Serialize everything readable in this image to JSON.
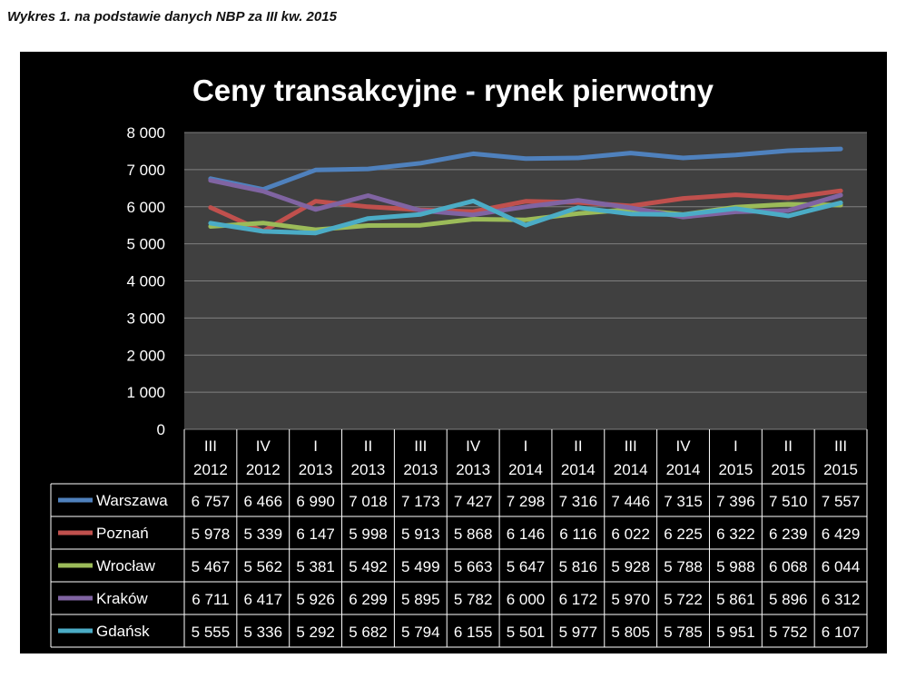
{
  "caption": "Wykres 1. na podstawie danych NBP za III kw. 2015",
  "chart_data": {
    "type": "line",
    "title": "Ceny transakcyjne - rynek pierwotny",
    "ylim": [
      0,
      8000
    ],
    "yticks": [
      "0",
      "1 000",
      "2 000",
      "3 000",
      "4 000",
      "5 000",
      "6 000",
      "7 000",
      "8 000"
    ],
    "categories": [
      [
        "III",
        "2012"
      ],
      [
        "IV",
        "2012"
      ],
      [
        "I",
        "2013"
      ],
      [
        "II",
        "2013"
      ],
      [
        "III",
        "2013"
      ],
      [
        "IV",
        "2013"
      ],
      [
        "I",
        "2014"
      ],
      [
        "II",
        "2014"
      ],
      [
        "III",
        "2014"
      ],
      [
        "IV",
        "2014"
      ],
      [
        "I",
        "2015"
      ],
      [
        "II",
        "2015"
      ],
      [
        "III",
        "2015"
      ]
    ],
    "legend_position": "table-below",
    "grid": true,
    "series": [
      {
        "name": "Warszawa",
        "color": "#4f81bd",
        "values": [
          6757,
          6466,
          6990,
          7018,
          7173,
          7427,
          7298,
          7316,
          7446,
          7315,
          7396,
          7510,
          7557
        ],
        "labels": [
          "6 757",
          "6 466",
          "6 990",
          "7 018",
          "7 173",
          "7 427",
          "7 298",
          "7 316",
          "7 446",
          "7 315",
          "7 396",
          "7 510",
          "7 557"
        ]
      },
      {
        "name": "Poznań",
        "color": "#c0504d",
        "values": [
          5978,
          5339,
          6147,
          5998,
          5913,
          5868,
          6146,
          6116,
          6022,
          6225,
          6322,
          6239,
          6429
        ],
        "labels": [
          "5 978",
          "5 339",
          "6 147",
          "5 998",
          "5 913",
          "5 868",
          "6 146",
          "6 116",
          "6 022",
          "6 225",
          "6 322",
          "6 239",
          "6 429"
        ]
      },
      {
        "name": "Wrocław",
        "color": "#9bbb59",
        "values": [
          5467,
          5562,
          5381,
          5492,
          5499,
          5663,
          5647,
          5816,
          5928,
          5788,
          5988,
          6068,
          6044
        ],
        "labels": [
          "5 467",
          "5 562",
          "5 381",
          "5 492",
          "5 499",
          "5 663",
          "5 647",
          "5 816",
          "5 928",
          "5 788",
          "5 988",
          "6 068",
          "6 044"
        ]
      },
      {
        "name": "Kraków",
        "color": "#8064a2",
        "values": [
          6711,
          6417,
          5926,
          6299,
          5895,
          5782,
          6000,
          6172,
          5970,
          5722,
          5861,
          5896,
          6312
        ],
        "labels": [
          "6 711",
          "6 417",
          "5 926",
          "6 299",
          "5 895",
          "5 782",
          "6 000",
          "6 172",
          "5 970",
          "5 722",
          "5 861",
          "5 896",
          "6 312"
        ]
      },
      {
        "name": "Gdańsk",
        "color": "#4bacc6",
        "values": [
          5555,
          5336,
          5292,
          5682,
          5794,
          6155,
          5501,
          5977,
          5805,
          5785,
          5951,
          5752,
          6107
        ],
        "labels": [
          "5 555",
          "5 336",
          "5 292",
          "5 682",
          "5 794",
          "6 155",
          "5 501",
          "5 977",
          "5 805",
          "5 785",
          "5 951",
          "5 752",
          "6 107"
        ]
      }
    ]
  }
}
